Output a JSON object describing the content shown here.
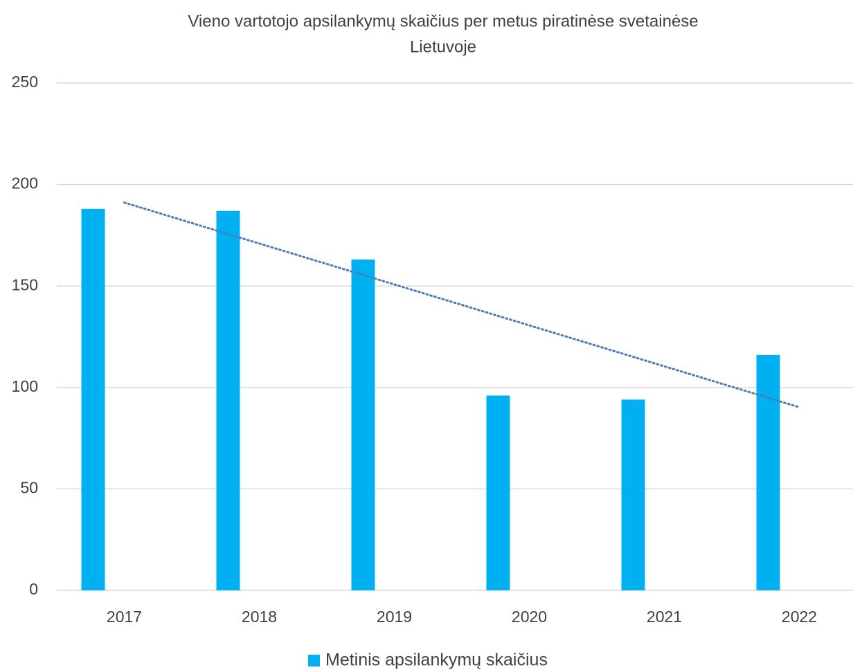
{
  "chart_data": {
    "type": "bar",
    "title": [
      "Vieno vartotojo apsilankymų skaičius per metus piratinėse svetainėse",
      "Lietuvoje"
    ],
    "categories": [
      "2017",
      "2018",
      "2019",
      "2020",
      "2021",
      "2022"
    ],
    "series": [
      {
        "name": "Metinis apsilankymų skaičius",
        "color": "#00b0f0",
        "values": [
          188,
          187,
          163,
          96,
          94,
          116
        ]
      }
    ],
    "trendline": {
      "type": "linear",
      "color": "#4a7ebb"
    },
    "ylim": [
      0,
      250
    ],
    "yticks": [
      0,
      50,
      100,
      150,
      200,
      250
    ],
    "grid": true,
    "legend": "bottom"
  }
}
